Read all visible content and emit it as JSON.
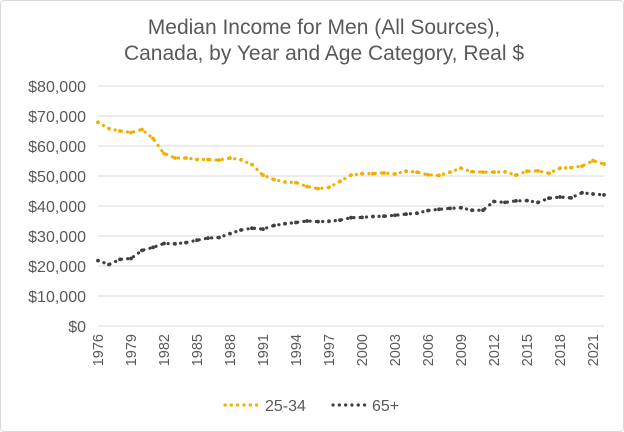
{
  "chart_data": {
    "type": "line",
    "title": "Median Income for Men (All Sources), Canada, by Year and Age Category, Real $",
    "title_lines": [
      "Median Income for Men (All Sources),",
      "Canada, by Year and Age Category, Real $"
    ],
    "xlabel": "",
    "ylabel": "",
    "ylim": [
      0,
      80000
    ],
    "y_ticks": [
      0,
      10000,
      20000,
      30000,
      40000,
      50000,
      60000,
      70000,
      80000
    ],
    "y_tick_labels": [
      "$0",
      "$10,000",
      "$20,000",
      "$30,000",
      "$40,000",
      "$50,000",
      "$60,000",
      "$70,000",
      "$80,000"
    ],
    "x": [
      1976,
      1977,
      1978,
      1979,
      1980,
      1981,
      1982,
      1983,
      1984,
      1985,
      1986,
      1987,
      1988,
      1989,
      1990,
      1991,
      1992,
      1993,
      1994,
      1995,
      1996,
      1997,
      1998,
      1999,
      2000,
      2001,
      2002,
      2003,
      2004,
      2005,
      2006,
      2007,
      2008,
      2009,
      2010,
      2011,
      2012,
      2013,
      2014,
      2015,
      2016,
      2017,
      2018,
      2019,
      2020,
      2021,
      2022
    ],
    "x_tick_labels": [
      "1976",
      "1979",
      "1982",
      "1985",
      "1988",
      "1991",
      "1994",
      "1997",
      "2000",
      "2003",
      "2006",
      "2009",
      "2012",
      "2015",
      "2018",
      "2021"
    ],
    "x_tick_values": [
      1976,
      1979,
      1982,
      1985,
      1988,
      1991,
      1994,
      1997,
      2000,
      2003,
      2006,
      2009,
      2012,
      2015,
      2018,
      2021
    ],
    "grid": true,
    "legend_position": "bottom",
    "series": [
      {
        "name": "25-34",
        "color": "#F2AE00",
        "line_style": "dotted",
        "values": [
          67900,
          65800,
          65000,
          64500,
          65500,
          62500,
          57500,
          56000,
          56000,
          55500,
          55500,
          55300,
          56000,
          55400,
          53800,
          50300,
          48800,
          48000,
          47800,
          46500,
          45800,
          46200,
          48200,
          50300,
          50800,
          50800,
          51000,
          50700,
          51600,
          51300,
          50400,
          50200,
          51300,
          52600,
          51400,
          51300,
          51300,
          51400,
          50300,
          51600,
          51700,
          50900,
          52600,
          52800,
          53300,
          55100,
          54000
        ]
      },
      {
        "name": "65+",
        "color": "#404040",
        "line_style": "dotted",
        "values": [
          21800,
          20500,
          22200,
          22500,
          25200,
          26200,
          27500,
          27400,
          27800,
          28600,
          29300,
          29500,
          30800,
          32000,
          32600,
          32300,
          33500,
          34100,
          34500,
          35000,
          34800,
          34900,
          35300,
          36100,
          36200,
          36500,
          36600,
          36900,
          37300,
          37600,
          38500,
          38900,
          39200,
          39400,
          38600,
          38600,
          41500,
          41200,
          41700,
          41800,
          41200,
          42600,
          43000,
          42700,
          44400,
          44000,
          43700
        ]
      }
    ]
  }
}
